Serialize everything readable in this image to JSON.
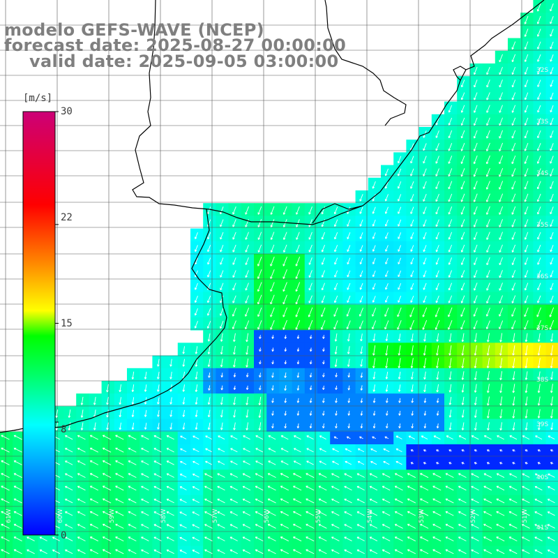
{
  "header": {
    "model_line": "modelo GEFS-WAVE (NCEP)",
    "forecast_line": "forecast date: 2025-08-27 00:00:00",
    "valid_line": "valid date: 2025-09-05 03:00:00"
  },
  "colorbar": {
    "unit": "[m/s]",
    "ticks": [
      {
        "value": 30,
        "label": "30"
      },
      {
        "value": 22,
        "label": "22"
      },
      {
        "value": 15,
        "label": "15"
      },
      {
        "value": 8,
        "label": "8"
      },
      {
        "value": 0,
        "label": "0"
      }
    ],
    "colors": [
      "#0000ff",
      "#0077ff",
      "#00ffff",
      "#00ff66",
      "#00ff00",
      "#ffff00",
      "#ff8000",
      "#ff0000",
      "#cc0077"
    ]
  },
  "axis_labels": {
    "longitudes": [
      "61W",
      "60W",
      "59W",
      "58W",
      "57W",
      "56W",
      "55W",
      "54W",
      "53W",
      "52W",
      "51W"
    ],
    "latitudes": [
      "32S",
      "33S",
      "34S",
      "35S",
      "36S",
      "37S",
      "38S",
      "39S",
      "40S",
      "41S"
    ]
  },
  "chart_data": {
    "type": "heatmap",
    "title": "modelo GEFS-WAVE (NCEP)",
    "quantity": "wind speed",
    "unit": "[m/s]",
    "value_range": [
      0,
      30
    ],
    "region": "Rio de la Plata / southern Brazil coast",
    "forecast_date": "2025-08-27 00:00:00",
    "valid_date": "2025-09-05 03:00:00",
    "arrows": "wind direction vectors, mostly toward the southwest in the north, toward the northwest in the south",
    "zones": [
      {
        "area": "offshore north",
        "speed_ms": 9
      },
      {
        "area": "Rio de la Plata estuary",
        "speed_ms": 11
      },
      {
        "area": "central band",
        "speed_ms": 12
      },
      {
        "area": "low-wind band",
        "speed_ms": 3
      },
      {
        "area": "strong band east",
        "speed_ms": 14
      },
      {
        "area": "narrow calm strip",
        "speed_ms": 1
      },
      {
        "area": "south",
        "speed_ms": 10
      }
    ]
  }
}
